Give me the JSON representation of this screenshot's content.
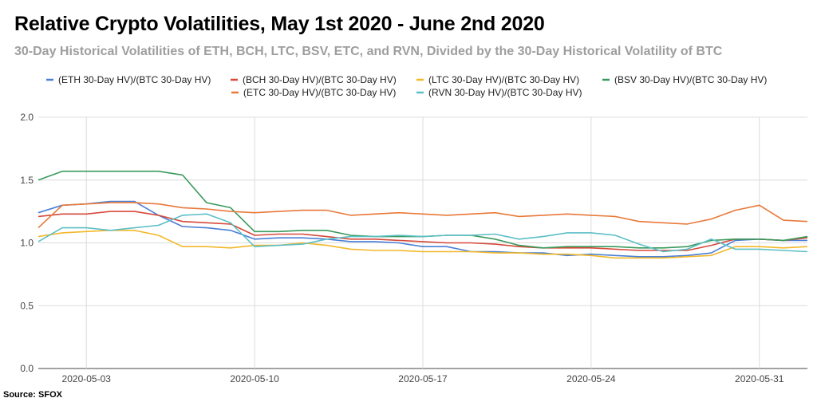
{
  "title": "Relative Crypto Volatilities, May 1st 2020 - June 2nd 2020",
  "subtitle": "30-Day Historical Volatilities of ETH, BCH, LTC, BSV, ETC, and RVN, Divided by the 30-Day Historical Volatility of BTC",
  "source": "Source: SFOX",
  "chart_data": {
    "type": "line",
    "xlabel": "",
    "ylabel": "",
    "ylim": [
      0,
      2.0
    ],
    "yticks": [
      "0.0",
      "0.5",
      "1.0",
      "1.5",
      "2.0"
    ],
    "xticks": [
      "2020-05-03",
      "2020-05-10",
      "2020-05-17",
      "2020-05-24",
      "2020-05-31"
    ],
    "x": [
      "2020-05-01",
      "2020-05-02",
      "2020-05-03",
      "2020-05-04",
      "2020-05-05",
      "2020-05-06",
      "2020-05-07",
      "2020-05-08",
      "2020-05-09",
      "2020-05-10",
      "2020-05-11",
      "2020-05-12",
      "2020-05-13",
      "2020-05-14",
      "2020-05-15",
      "2020-05-16",
      "2020-05-17",
      "2020-05-18",
      "2020-05-19",
      "2020-05-20",
      "2020-05-21",
      "2020-05-22",
      "2020-05-23",
      "2020-05-24",
      "2020-05-25",
      "2020-05-26",
      "2020-05-27",
      "2020-05-28",
      "2020-05-29",
      "2020-05-30",
      "2020-05-31",
      "2020-06-01",
      "2020-06-02"
    ],
    "grid": true,
    "legend_position": "top",
    "series": [
      {
        "name": "(ETH 30-Day HV)/(BTC 30-Day HV)",
        "color": "#4a7fd6",
        "values": [
          1.24,
          1.3,
          1.31,
          1.33,
          1.33,
          1.22,
          1.13,
          1.12,
          1.1,
          1.03,
          1.04,
          1.04,
          1.03,
          1.01,
          1.01,
          1.0,
          0.97,
          0.97,
          0.93,
          0.93,
          0.92,
          0.92,
          0.9,
          0.91,
          0.9,
          0.89,
          0.89,
          0.9,
          0.92,
          1.02,
          1.03,
          1.02,
          1.02
        ]
      },
      {
        "name": "(BCH 30-Day HV)/(BTC 30-Day HV)",
        "color": "#d64a3b",
        "values": [
          1.21,
          1.23,
          1.23,
          1.25,
          1.25,
          1.22,
          1.17,
          1.16,
          1.15,
          1.06,
          1.07,
          1.07,
          1.05,
          1.03,
          1.03,
          1.02,
          1.01,
          1.0,
          1.0,
          0.99,
          0.97,
          0.96,
          0.96,
          0.96,
          0.95,
          0.94,
          0.94,
          0.94,
          0.98,
          1.03,
          1.03,
          1.02,
          1.04
        ]
      },
      {
        "name": "(LTC 30-Day HV)/(BTC 30-Day HV)",
        "color": "#f2b829",
        "values": [
          1.05,
          1.08,
          1.09,
          1.1,
          1.1,
          1.06,
          0.97,
          0.97,
          0.96,
          0.98,
          0.98,
          1.0,
          0.98,
          0.95,
          0.94,
          0.94,
          0.93,
          0.93,
          0.93,
          0.92,
          0.92,
          0.91,
          0.91,
          0.9,
          0.88,
          0.88,
          0.88,
          0.89,
          0.9,
          0.97,
          0.97,
          0.96,
          0.97
        ]
      },
      {
        "name": "(BSV 30-Day HV)/(BTC 30-Day HV)",
        "color": "#3a9a5b",
        "values": [
          1.5,
          1.57,
          1.57,
          1.57,
          1.57,
          1.57,
          1.54,
          1.32,
          1.28,
          1.09,
          1.09,
          1.1,
          1.1,
          1.06,
          1.05,
          1.05,
          1.05,
          1.06,
          1.06,
          1.03,
          0.98,
          0.96,
          0.97,
          0.97,
          0.97,
          0.96,
          0.96,
          0.97,
          1.02,
          1.03,
          1.03,
          1.02,
          1.05
        ]
      },
      {
        "name": "(ETC 30-Day HV)/(BTC 30-Day HV)",
        "color": "#e8793a",
        "values": [
          1.12,
          1.3,
          1.31,
          1.32,
          1.32,
          1.31,
          1.28,
          1.27,
          1.25,
          1.24,
          1.25,
          1.26,
          1.26,
          1.22,
          1.23,
          1.24,
          1.23,
          1.22,
          1.23,
          1.24,
          1.21,
          1.22,
          1.23,
          1.22,
          1.21,
          1.17,
          1.16,
          1.15,
          1.19,
          1.26,
          1.3,
          1.18,
          1.17
        ]
      },
      {
        "name": "(RVN 30-Day HV)/(BTC 30-Day HV)",
        "color": "#5cbfc6",
        "values": [
          1.01,
          1.12,
          1.12,
          1.1,
          1.12,
          1.14,
          1.22,
          1.23,
          1.16,
          0.97,
          0.98,
          0.99,
          1.03,
          1.05,
          1.05,
          1.06,
          1.05,
          1.06,
          1.06,
          1.07,
          1.03,
          1.05,
          1.08,
          1.08,
          1.06,
          0.99,
          0.93,
          0.95,
          1.03,
          0.95,
          0.95,
          0.94,
          0.93
        ]
      }
    ]
  }
}
